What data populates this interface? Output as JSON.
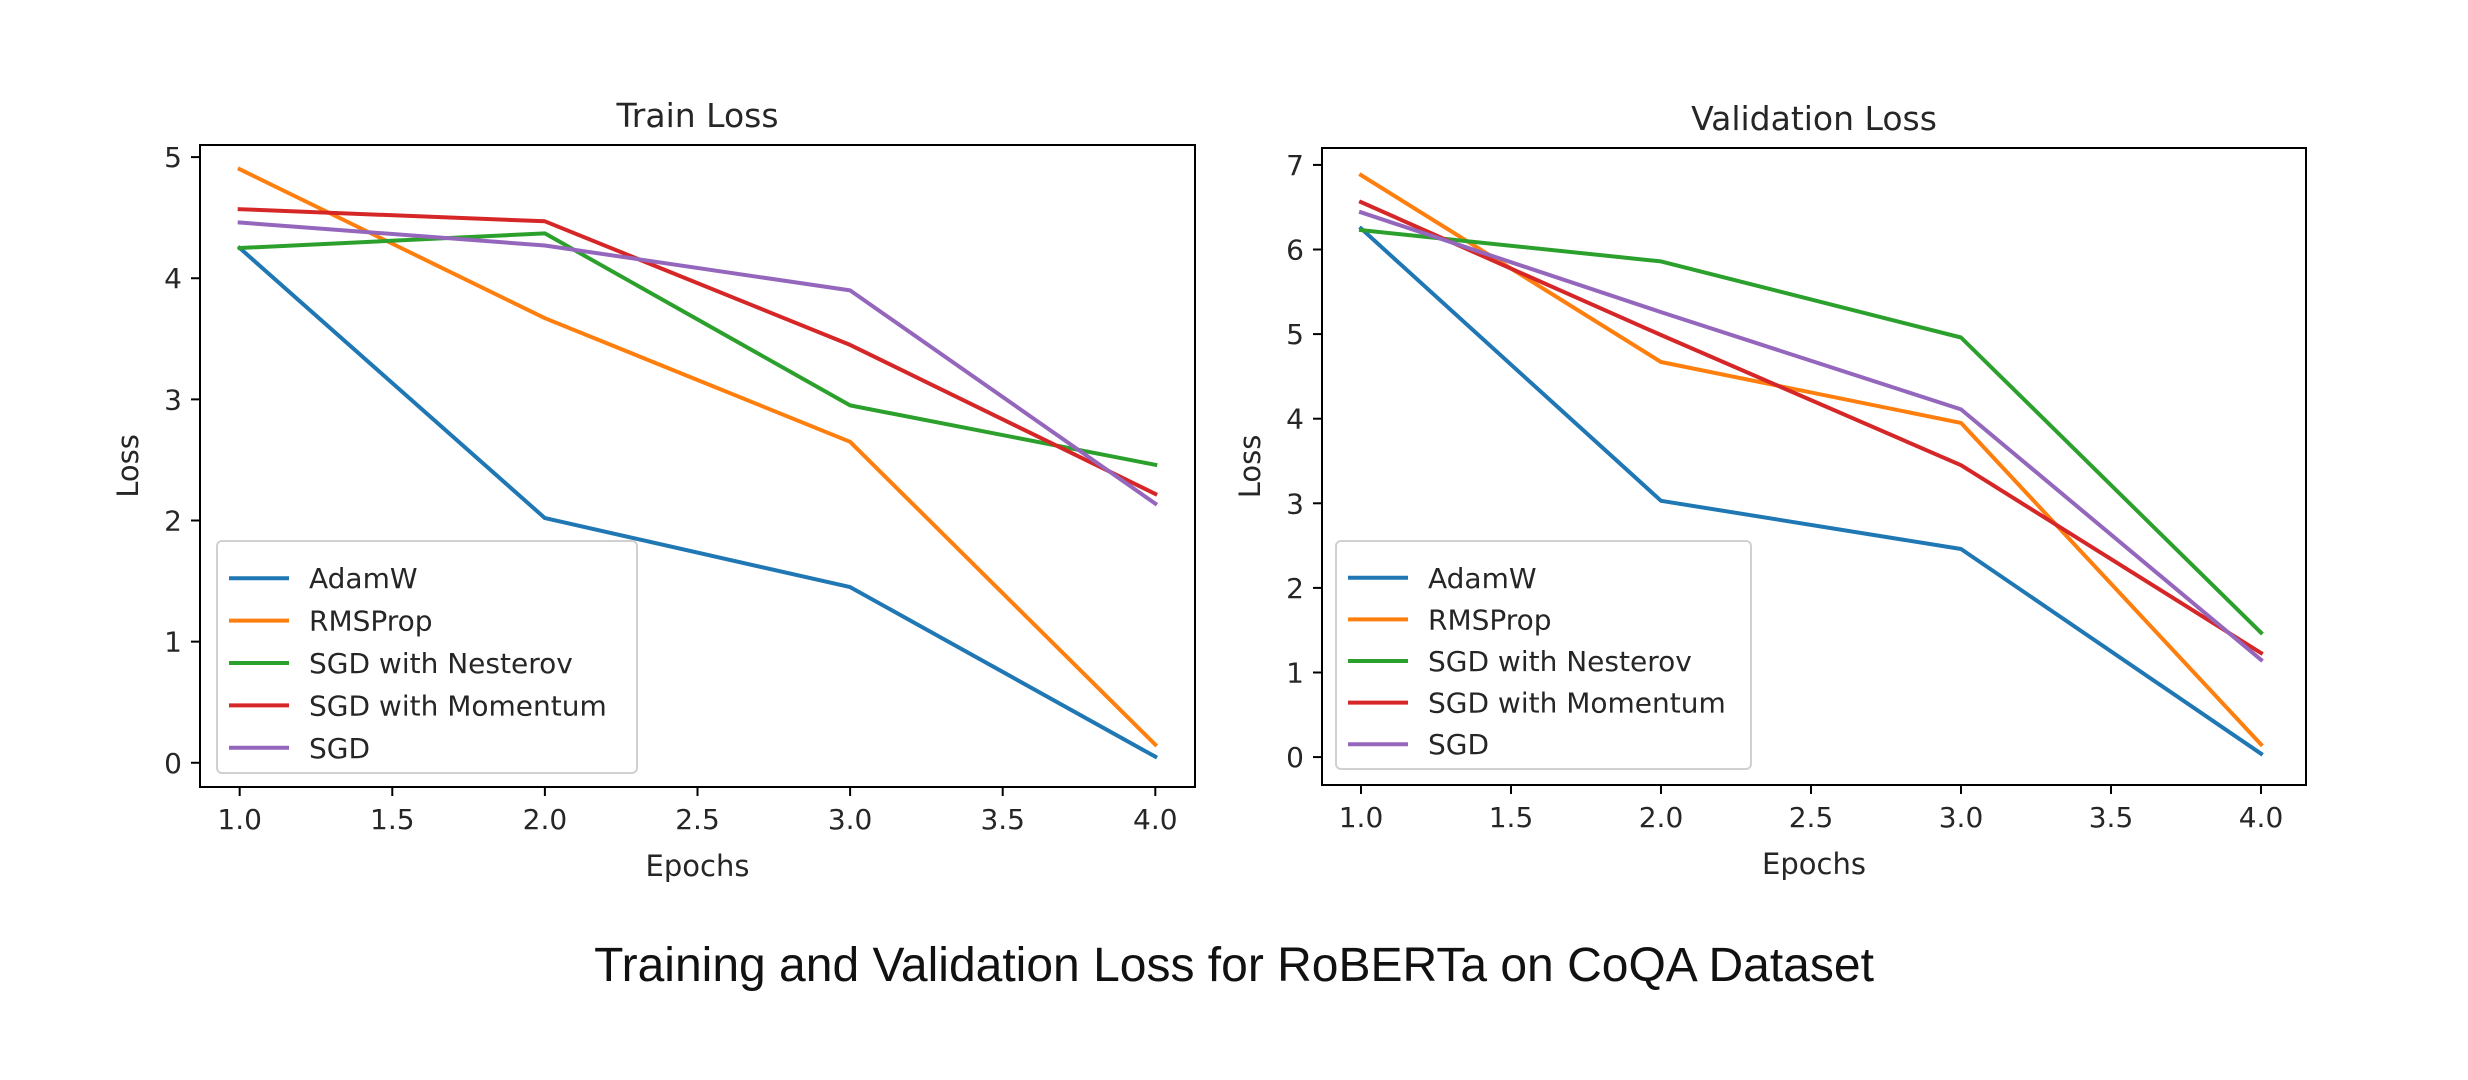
{
  "caption": "Training and Validation Loss for RoBERTa on CoQA Dataset",
  "series_colors": {
    "AdamW": "#1f77b4",
    "RMSProp": "#ff7f0e",
    "SGD with Nesterov": "#2ca02c",
    "SGD with Momentum": "#d62728",
    "SGD": "#9467bd"
  },
  "chart_data": [
    {
      "type": "line",
      "title": "Train Loss",
      "xlabel": "Epochs",
      "ylabel": "Loss",
      "x": [
        1.0,
        2.0,
        3.0,
        4.0
      ],
      "xlim": [
        0.87,
        4.13
      ],
      "ylim": [
        -0.2,
        5.1
      ],
      "xticks": [
        "1.0",
        "1.5",
        "2.0",
        "2.5",
        "3.0",
        "3.5",
        "4.0"
      ],
      "yticks": [
        "0",
        "1",
        "2",
        "3",
        "4",
        "5"
      ],
      "grid": false,
      "legend_position": "lower left",
      "series": [
        {
          "name": "AdamW",
          "values": [
            4.25,
            2.02,
            1.45,
            0.05
          ]
        },
        {
          "name": "RMSProp",
          "values": [
            4.9,
            3.67,
            2.65,
            0.15
          ]
        },
        {
          "name": "SGD with Nesterov",
          "values": [
            4.25,
            4.37,
            2.95,
            2.46
          ]
        },
        {
          "name": "SGD with Momentum",
          "values": [
            4.57,
            4.47,
            3.45,
            2.22
          ]
        },
        {
          "name": "SGD",
          "values": [
            4.46,
            4.27,
            3.9,
            2.14
          ]
        }
      ]
    },
    {
      "type": "line",
      "title": "Validation Loss",
      "xlabel": "Epochs",
      "ylabel": "Loss",
      "x": [
        1.0,
        2.0,
        3.0,
        4.0
      ],
      "xlim": [
        0.87,
        4.15
      ],
      "ylim": [
        -0.33,
        7.2
      ],
      "xticks": [
        "1.0",
        "1.5",
        "2.0",
        "2.5",
        "3.0",
        "3.5",
        "4.0"
      ],
      "yticks": [
        "0",
        "1",
        "2",
        "3",
        "4",
        "5",
        "6",
        "7"
      ],
      "grid": false,
      "legend_position": "lower left",
      "series": [
        {
          "name": "AdamW",
          "values": [
            6.25,
            3.03,
            2.46,
            0.04
          ]
        },
        {
          "name": "RMSProp",
          "values": [
            6.88,
            4.67,
            3.95,
            0.15
          ]
        },
        {
          "name": "SGD with Nesterov",
          "values": [
            6.23,
            5.86,
            4.96,
            1.47
          ]
        },
        {
          "name": "SGD with Momentum",
          "values": [
            6.56,
            4.99,
            3.45,
            1.23
          ]
        },
        {
          "name": "SGD",
          "values": [
            6.44,
            5.26,
            4.11,
            1.15
          ]
        }
      ]
    }
  ]
}
